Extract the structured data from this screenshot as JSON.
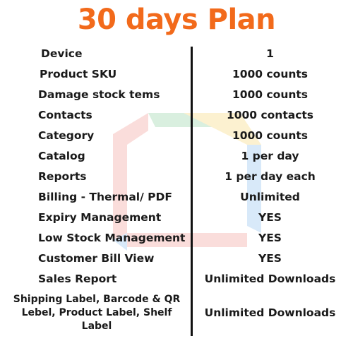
{
  "title": "30 days Plan",
  "colors": {
    "title": "#f26a1b",
    "text": "#1a1a1a",
    "divider": "#111111"
  },
  "rows": [
    {
      "feature": "Device",
      "value": "1"
    },
    {
      "feature": "Product SKU",
      "value": "1000 counts"
    },
    {
      "feature": "Damage stock tems",
      "value": "1000 counts"
    },
    {
      "feature": "Contacts",
      "value": "1000 contacts"
    },
    {
      "feature": "Category",
      "value": "1000 counts"
    },
    {
      "feature": "Catalog",
      "value": "1 per day"
    },
    {
      "feature": "Reports",
      "value": "1 per day each"
    },
    {
      "feature": "Billing - Thermal/ PDF",
      "value": "Unlimited"
    },
    {
      "feature": "Expiry Management",
      "value": "YES"
    },
    {
      "feature": "Low Stock Management",
      "value": "YES"
    },
    {
      "feature": "Customer Bill View",
      "value": "YES"
    },
    {
      "feature": "Sales Report",
      "value": "Unlimited Downloads"
    },
    {
      "feature": "Shipping Label, Barcode & QR Lebel, Product Label, Shelf Label",
      "value": "Unlimited Downloads"
    }
  ]
}
